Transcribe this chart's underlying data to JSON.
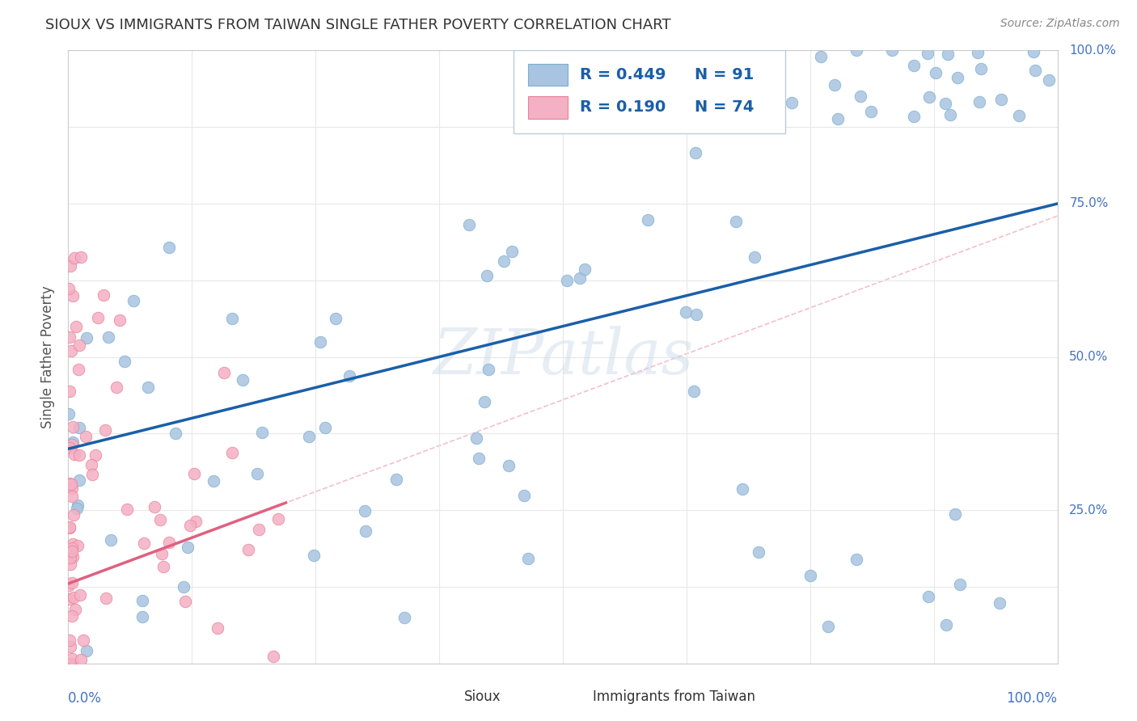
{
  "title": "SIOUX VS IMMIGRANTS FROM TAIWAN SINGLE FATHER POVERTY CORRELATION CHART",
  "source": "Source: ZipAtlas.com",
  "ylabel": "Single Father Poverty",
  "watermark": "ZIPatlas",
  "blue_scatter_color": "#a8c4e0",
  "blue_scatter_edge": "#7ab0d0",
  "pink_scatter_color": "#f4b0c4",
  "pink_scatter_edge": "#e88098",
  "blue_line_color": "#1a5fa8",
  "pink_line_color": "#e06080",
  "dashed_line_color_blue": "#b8cce0",
  "dashed_line_color_pink": "#f0b0c0",
  "background": "#ffffff",
  "grid_color": "#e8e8e8",
  "legend_box_color": "#cccccc",
  "r_blue": "R = 0.449",
  "n_blue": "N = 91",
  "r_pink": "R = 0.190",
  "n_pink": "N = 74",
  "text_blue": "#1a5fa8",
  "text_dark": "#333333",
  "axis_label_color": "#4472c4",
  "ylabel_color": "#555555",
  "source_color": "#888888"
}
